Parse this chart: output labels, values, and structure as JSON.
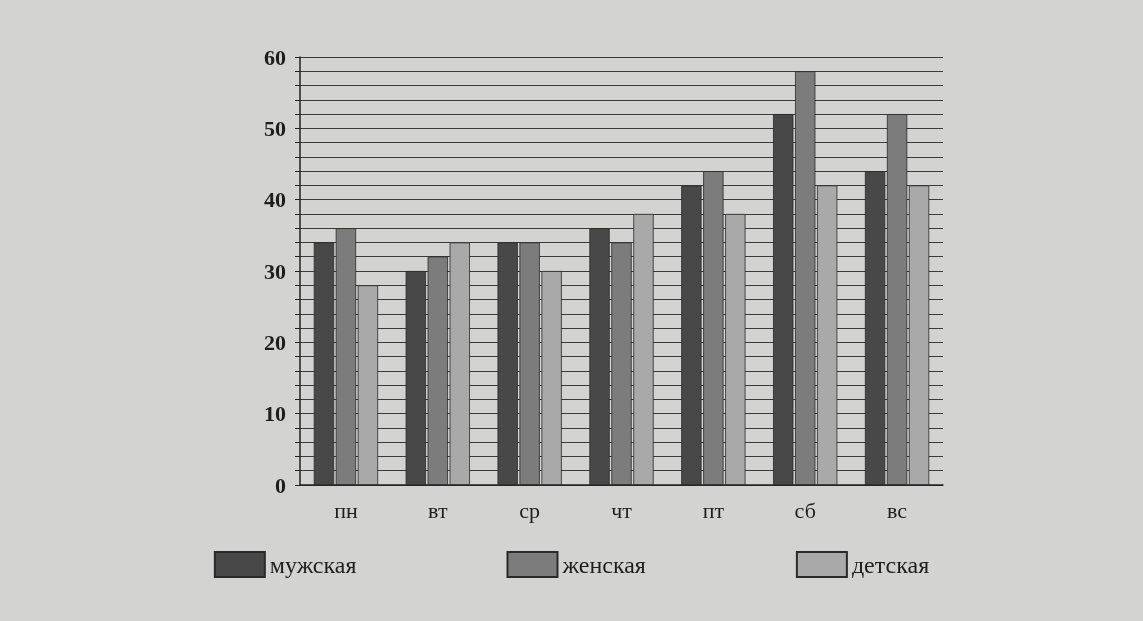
{
  "chart_data": {
    "type": "bar",
    "categories": [
      "пн",
      "вт",
      "ср",
      "чт",
      "пт",
      "сб",
      "вс"
    ],
    "series": [
      {
        "name": "мужская",
        "color": "#484848",
        "values": [
          34,
          30,
          34,
          36,
          42,
          52,
          44
        ]
      },
      {
        "name": "женская",
        "color": "#7c7c7c",
        "values": [
          36,
          32,
          34,
          34,
          44,
          58,
          52
        ]
      },
      {
        "name": "детская",
        "color": "#a9a9a9",
        "values": [
          28,
          34,
          30,
          38,
          38,
          42,
          42
        ]
      }
    ],
    "ylim": [
      0,
      60
    ],
    "yticks": [
      0,
      {
        "value": 2,
        "label": null
      },
      {
        "value": 4,
        "label": null
      },
      {
        "value": 6,
        "label": null
      },
      {
        "value": 8,
        "label": null
      },
      10,
      {
        "value": 12,
        "label": null
      },
      {
        "value": 14,
        "label": null
      },
      {
        "value": 16,
        "label": null
      },
      {
        "value": 18,
        "label": null
      },
      20,
      {
        "value": 22,
        "label": null
      },
      {
        "value": 24,
        "label": null
      },
      {
        "value": 26,
        "label": null
      },
      {
        "value": 28,
        "label": null
      },
      30,
      {
        "value": 32,
        "label": null
      },
      {
        "value": 34,
        "label": null
      },
      {
        "value": 36,
        "label": null
      },
      {
        "value": 38,
        "label": null
      },
      40,
      {
        "value": 42,
        "label": null
      },
      {
        "value": 44,
        "label": null
      },
      {
        "value": 46,
        "label": null
      },
      {
        "value": 48,
        "label": null
      },
      50,
      {
        "value": 52,
        "label": null
      },
      {
        "value": 54,
        "label": null
      },
      {
        "value": 56,
        "label": null
      },
      {
        "value": 58,
        "label": null
      },
      60
    ],
    "grid": "y",
    "legend": "bottom"
  }
}
